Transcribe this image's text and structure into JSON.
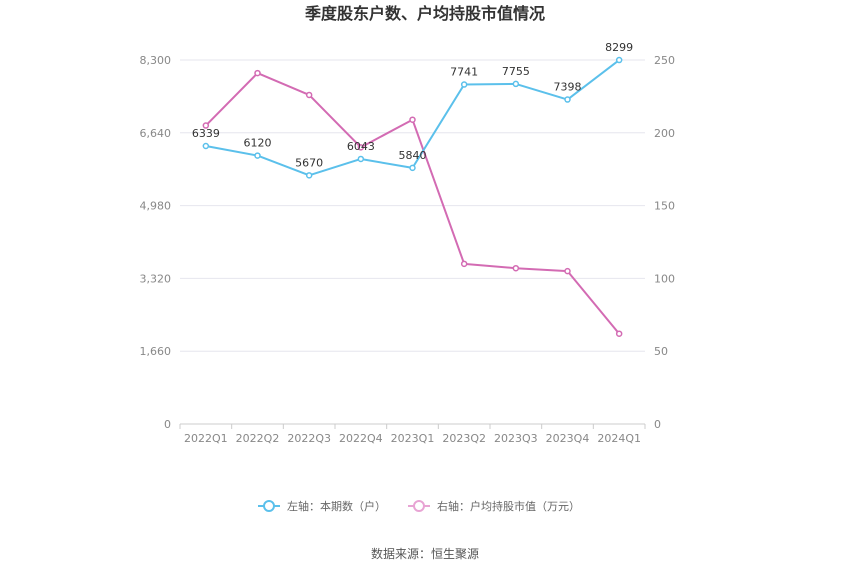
{
  "chart_data": {
    "type": "line",
    "title": "季度股东户数、户均持股市值情况",
    "categories": [
      "2022Q1",
      "2022Q2",
      "2022Q3",
      "2022Q4",
      "2023Q1",
      "2023Q2",
      "2023Q3",
      "2023Q4",
      "2024Q1"
    ],
    "series": [
      {
        "name": "左轴：本期数（户）",
        "axis": "left",
        "color": "#5bc0eb",
        "values": [
          6339,
          6120,
          5670,
          6043,
          5840,
          7741,
          7755,
          7398,
          8299
        ],
        "labels": [
          "6339",
          "6120",
          "5670",
          "6043",
          "5840",
          "7741",
          "7755",
          "7398",
          "8299"
        ]
      },
      {
        "name": "右轴：户均持股市值（万元）",
        "axis": "right",
        "color": "#d36bb3",
        "values": [
          205,
          241,
          226,
          190,
          209,
          110,
          107,
          105,
          62
        ]
      }
    ],
    "left_axis": {
      "ylim": [
        0,
        8300
      ],
      "ticks": [
        "0",
        "1,660",
        "3,320",
        "4,980",
        "6,640",
        "8,300"
      ],
      "tick_values": [
        0,
        1660,
        3320,
        4980,
        6640,
        8300
      ]
    },
    "right_axis": {
      "ylim": [
        0,
        250
      ],
      "ticks": [
        "0",
        "50",
        "100",
        "150",
        "200",
        "250"
      ],
      "tick_values": [
        0,
        50,
        100,
        150,
        200,
        250
      ]
    },
    "grid": true,
    "legend_position": "bottom"
  },
  "source_text": "数据来源：恒生聚源"
}
